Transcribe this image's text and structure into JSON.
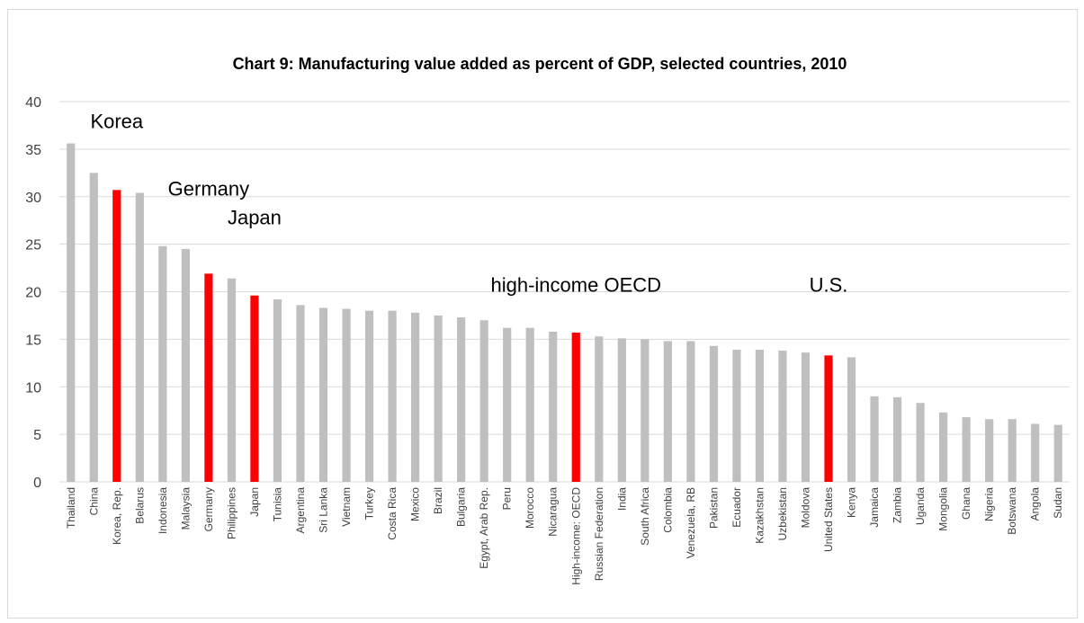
{
  "chart_data": {
    "type": "bar",
    "title": "Chart 9: Manufacturing value added as percent of GDP, selected countries, 2010",
    "xlabel": "",
    "ylabel": "",
    "ylim": [
      0,
      40
    ],
    "yticks": [
      0,
      5,
      10,
      15,
      20,
      25,
      30,
      35,
      40
    ],
    "grid": true,
    "legend": "none",
    "categories": [
      "Thailand",
      "China",
      "Korea, Rep.",
      "Belarus",
      "Indonesia",
      "Malaysia",
      "Germany",
      "Philippines",
      "Japan",
      "Tunisia",
      "Argentina",
      "Sri Lanka",
      "Vietnam",
      "Turkey",
      "Costa Rica",
      "Mexico",
      "Brazil",
      "Bulgaria",
      "Egypt, Arab Rep.",
      "Peru",
      "Morocco",
      "Nicaragua",
      "High-income: OECD",
      "Russian Federation",
      "India",
      "South Africa",
      "Colombia",
      "Venezuela, RB",
      "Pakistan",
      "Ecuador",
      "Kazakhstan",
      "Uzbekistan",
      "Moldova",
      "United States",
      "Kenya",
      "Jamaica",
      "Zambia",
      "Uganda",
      "Mongolia",
      "Ghana",
      "Nigeria",
      "Botswana",
      "Angola",
      "Sudan"
    ],
    "values": [
      35.6,
      32.5,
      30.7,
      30.4,
      24.8,
      24.5,
      21.9,
      21.4,
      19.6,
      19.2,
      18.6,
      18.3,
      18.2,
      18.0,
      18.0,
      17.8,
      17.5,
      17.3,
      17.0,
      16.2,
      16.2,
      15.8,
      15.7,
      15.3,
      15.1,
      15.0,
      14.8,
      14.8,
      14.3,
      13.9,
      13.9,
      13.8,
      13.6,
      13.3,
      13.1,
      9.0,
      8.9,
      8.3,
      7.3,
      6.8,
      6.6,
      6.6,
      6.1,
      6.0
    ],
    "highlighted": [
      "Korea, Rep.",
      "Germany",
      "Japan",
      "High-income: OECD",
      "United States"
    ],
    "colors": {
      "default": "#bfbfbf",
      "highlight": "#ff0000",
      "grid": "#d9d9d9"
    },
    "annotations": [
      {
        "text": "Korea",
        "category": "Korea, Rep.",
        "value": 37.2
      },
      {
        "text": "Germany",
        "category": "Germany",
        "value": 30.1
      },
      {
        "text": "Japan",
        "category": "Japan",
        "value": 27.1
      },
      {
        "text": "high-income OECD",
        "category": "High-income: OECD",
        "value": 20.0
      },
      {
        "text": "U.S.",
        "category": "United States",
        "value": 20.0
      }
    ]
  }
}
